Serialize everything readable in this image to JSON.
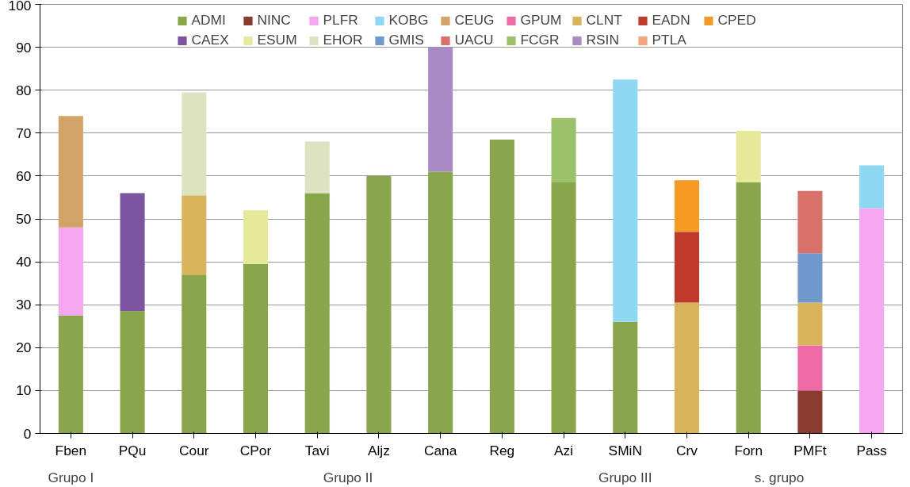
{
  "chart_data": {
    "type": "bar",
    "stacked": true,
    "categories": [
      "Fben",
      "PQu",
      "Cour",
      "CPor",
      "Tavi",
      "Aljz",
      "Cana",
      "Reg",
      "Azi",
      "SMiN",
      "Crv",
      "Forn",
      "PMFt",
      "Pass"
    ],
    "series": [
      {
        "name": "ADMI",
        "color": "#8aa64a",
        "values": [
          27.5,
          28.5,
          37,
          39.5,
          56,
          60,
          61,
          68.5,
          58.5,
          26,
          null,
          58.5,
          null,
          null
        ]
      },
      {
        "name": "NINC",
        "color": "#8b3a2e",
        "values": [
          null,
          null,
          null,
          null,
          null,
          null,
          null,
          null,
          null,
          null,
          null,
          null,
          10,
          null
        ]
      },
      {
        "name": "PLFR",
        "color": "#f4a6f0",
        "values": [
          20.5,
          null,
          null,
          null,
          null,
          null,
          null,
          null,
          null,
          null,
          null,
          null,
          null,
          52.5
        ]
      },
      {
        "name": "KOBG",
        "color": "#8fd8f2",
        "values": [
          null,
          null,
          null,
          null,
          null,
          null,
          null,
          null,
          null,
          56.5,
          null,
          null,
          null,
          10
        ]
      },
      {
        "name": "CEUG",
        "color": "#d4a36a",
        "values": [
          26,
          null,
          null,
          null,
          null,
          null,
          null,
          null,
          null,
          null,
          null,
          null,
          null,
          null
        ]
      },
      {
        "name": "GPUM",
        "color": "#f06aa8",
        "values": [
          null,
          null,
          null,
          null,
          null,
          null,
          null,
          null,
          null,
          null,
          null,
          null,
          10.5,
          null
        ]
      },
      {
        "name": "CLNT",
        "color": "#d9b45a",
        "values": [
          null,
          null,
          18.5,
          null,
          null,
          null,
          null,
          null,
          null,
          null,
          30.5,
          null,
          10,
          null
        ]
      },
      {
        "name": "EADN",
        "color": "#c0392b",
        "values": [
          null,
          null,
          null,
          null,
          null,
          null,
          null,
          null,
          null,
          null,
          16.5,
          null,
          null,
          null
        ]
      },
      {
        "name": "CPED",
        "color": "#f59a23",
        "values": [
          null,
          null,
          null,
          null,
          null,
          null,
          null,
          null,
          null,
          null,
          12,
          null,
          null,
          null
        ]
      },
      {
        "name": "CAEX",
        "color": "#7d54a0",
        "values": [
          null,
          27.5,
          null,
          null,
          null,
          null,
          null,
          null,
          null,
          null,
          null,
          null,
          null,
          null
        ]
      },
      {
        "name": "ESUM",
        "color": "#e6e89a",
        "values": [
          null,
          null,
          null,
          12.5,
          null,
          null,
          null,
          null,
          null,
          null,
          null,
          12,
          null,
          null
        ]
      },
      {
        "name": "EHOR",
        "color": "#dde3c0",
        "values": [
          null,
          null,
          24,
          null,
          12,
          null,
          null,
          null,
          null,
          null,
          null,
          null,
          null,
          null
        ]
      },
      {
        "name": "GMIS",
        "color": "#6f99cc",
        "values": [
          null,
          null,
          null,
          null,
          null,
          null,
          null,
          null,
          null,
          null,
          null,
          null,
          11.5,
          null
        ]
      },
      {
        "name": "UACU",
        "color": "#d9706a",
        "values": [
          null,
          null,
          null,
          null,
          null,
          null,
          null,
          null,
          null,
          null,
          null,
          null,
          14.5,
          null
        ]
      },
      {
        "name": "FCGR",
        "color": "#9bc26a",
        "values": [
          null,
          null,
          null,
          null,
          null,
          null,
          null,
          null,
          15,
          null,
          null,
          null,
          null,
          null
        ]
      },
      {
        "name": "RSIN",
        "color": "#a88bc4",
        "values": [
          null,
          null,
          null,
          null,
          null,
          null,
          29,
          null,
          null,
          null,
          null,
          null,
          null,
          null
        ]
      },
      {
        "name": "PTLA",
        "color": "#f4a57a",
        "values": [
          null,
          null,
          null,
          null,
          null,
          null,
          null,
          null,
          null,
          null,
          null,
          null,
          null,
          null
        ]
      }
    ],
    "ylim": [
      0,
      100
    ],
    "yticks": [
      0,
      10,
      20,
      30,
      40,
      50,
      60,
      70,
      80,
      90,
      100
    ],
    "grid": "y",
    "legend": "top",
    "annotations": [
      "Grupo I",
      "Grupo II",
      "Grupo III",
      "s. grupo"
    ]
  }
}
